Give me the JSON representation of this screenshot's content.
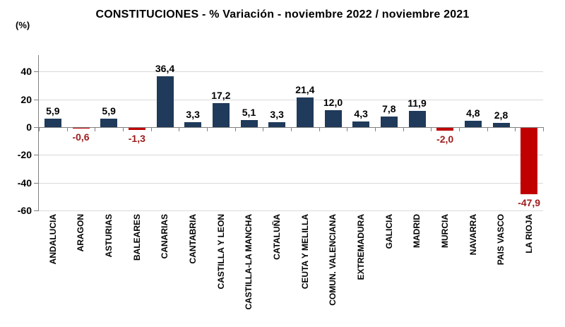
{
  "header": {
    "title": "CONSTITUCIONES - % Variación - noviembre 2022 / noviembre 2021",
    "y_unit_label": "(%)"
  },
  "chart_data": {
    "type": "bar",
    "title": "CONSTITUCIONES - % Variación - noviembre 2022 / noviembre 2021",
    "xlabel": "",
    "ylabel": "(%)",
    "categories": [
      "ANDALUCIA",
      "ARAGON",
      "ASTURIAS",
      "BALEARES",
      "CANARIAS",
      "CANTABRIA",
      "CASTILLA Y LEON",
      "CASTILLA-LA MANCHA",
      "CATALUÑA",
      "CEUTA Y MELILLA",
      "COMUN. VALENCIANA",
      "EXTREMADURA",
      "GALICIA",
      "MADRID",
      "MURCIA",
      "NAVARRA",
      "PAIS VASCO",
      "LA RIOJA"
    ],
    "values": [
      5.9,
      -0.6,
      5.9,
      -1.3,
      36.4,
      3.3,
      17.2,
      5.1,
      3.3,
      21.4,
      12.0,
      4.3,
      7.8,
      11.9,
      -2.0,
      4.8,
      2.8,
      -47.9
    ],
    "value_labels": [
      "5,9",
      "-0,6",
      "5,9",
      "-1,3",
      "36,4",
      "3,3",
      "17,2",
      "5,1",
      "3,3",
      "21,4",
      "12,0",
      "4,3",
      "7,8",
      "11,9",
      "-2,0",
      "4,8",
      "2,8",
      "-47,9"
    ],
    "ylim": [
      -60,
      52
    ],
    "yticks": [
      40,
      20,
      0,
      -20,
      -40,
      -60
    ],
    "ytick_labels": [
      "40",
      "20",
      "0",
      "-20",
      "-40",
      "-60"
    ],
    "grid": true,
    "legend": "none",
    "colors": {
      "positive_bar": "#1F3A5A",
      "negative_bar": "#C00000",
      "positive_value_label": "#000000",
      "negative_value_label": "#9E1B1B",
      "gridline": "#D9D9D9",
      "axis": "#7F7F7F",
      "title": "#000000"
    }
  }
}
